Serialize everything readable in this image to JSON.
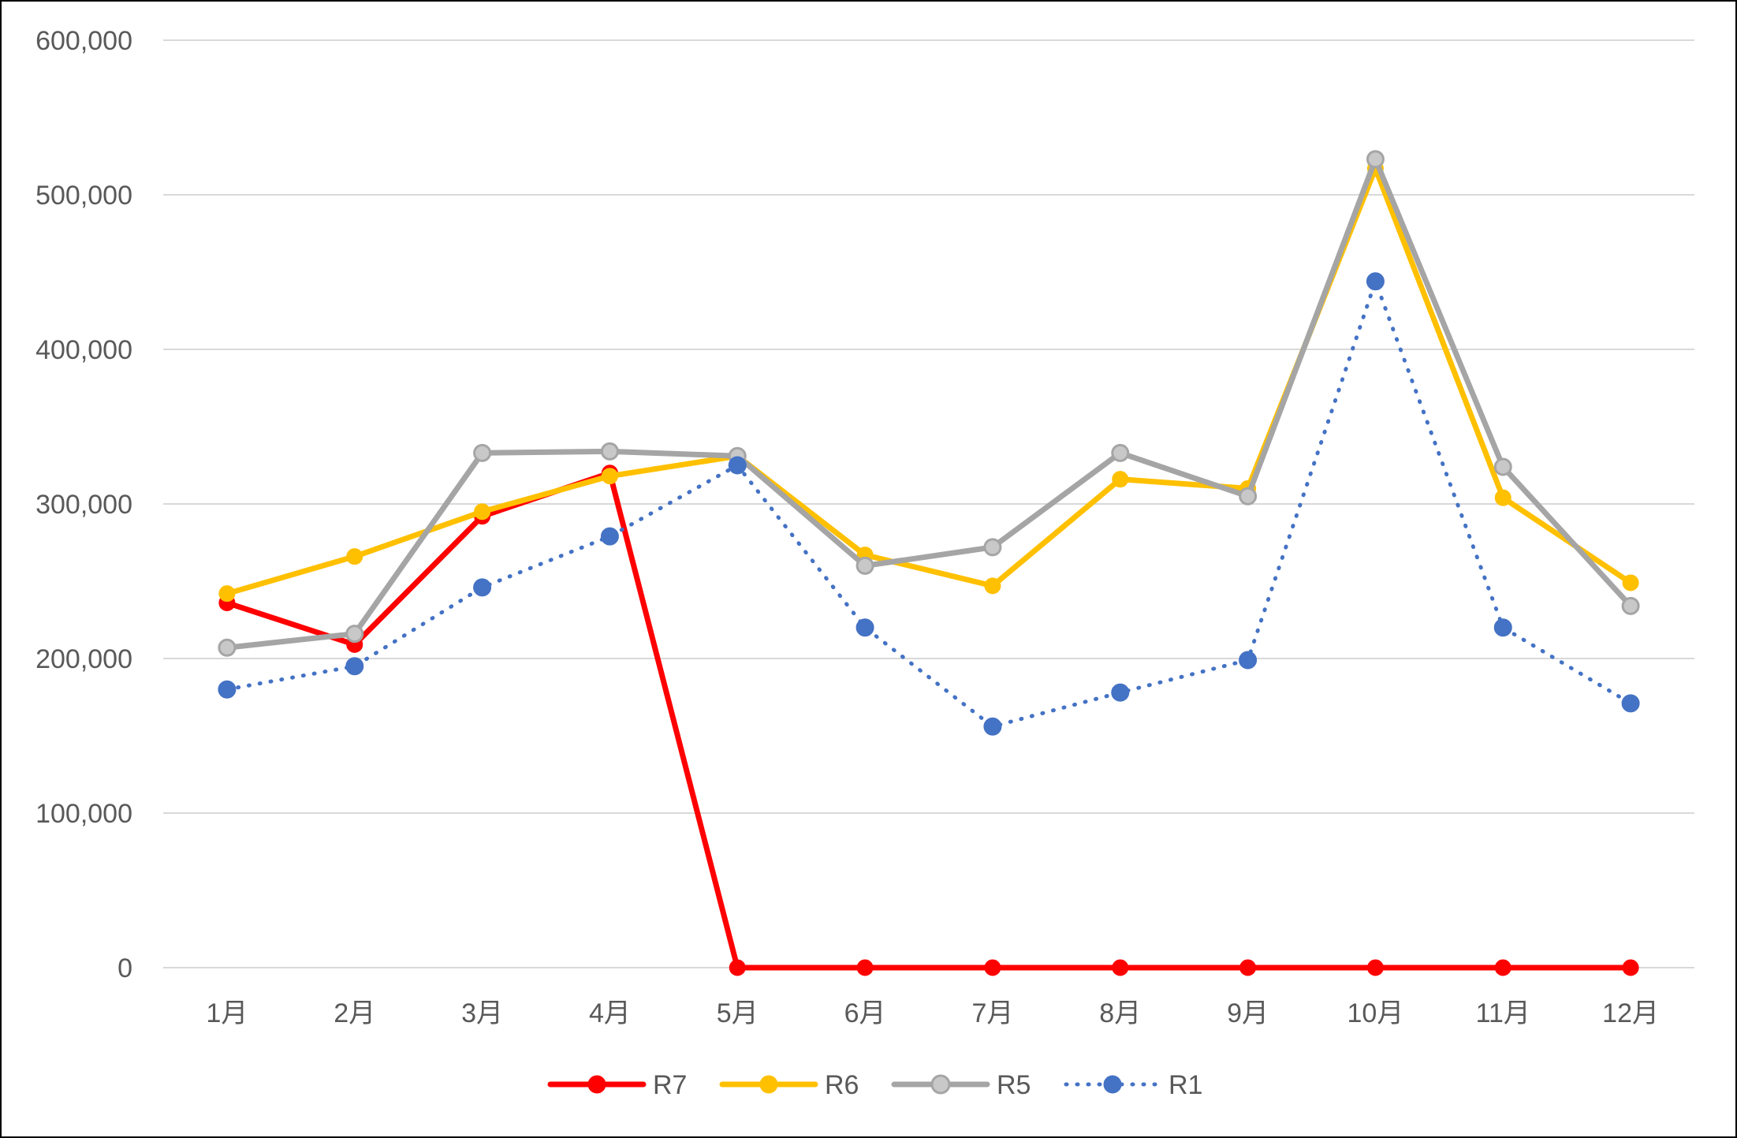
{
  "chart_data": {
    "type": "line",
    "title": "",
    "xlabel": "",
    "ylabel": "",
    "categories": [
      "1月",
      "2月",
      "3月",
      "4月",
      "5月",
      "6月",
      "7月",
      "8月",
      "9月",
      "10月",
      "11月",
      "12月"
    ],
    "ylim": [
      0,
      600000
    ],
    "yticks": [
      0,
      100000,
      200000,
      300000,
      400000,
      500000,
      600000
    ],
    "ytick_labels": [
      "0",
      "100,000",
      "200,000",
      "300,000",
      "400,000",
      "500,000",
      "600,000"
    ],
    "grid": true,
    "legend_position": "bottom",
    "series": [
      {
        "name": "R7",
        "color": "#ff0000",
        "line_style": "solid",
        "marker_fill": "#ff0000",
        "values": [
          236000,
          209000,
          292000,
          320000,
          0,
          0,
          0,
          0,
          0,
          0,
          0,
          0
        ]
      },
      {
        "name": "R6",
        "color": "#ffc000",
        "line_style": "solid",
        "marker_fill": "#ffc000",
        "values": [
          242000,
          266000,
          295000,
          318000,
          331000,
          267000,
          247000,
          316000,
          310000,
          517000,
          304000,
          249000
        ]
      },
      {
        "name": "R5",
        "color": "#a5a5a5",
        "line_style": "solid",
        "marker_fill": "#c8c8c8",
        "values": [
          207000,
          216000,
          333000,
          334000,
          331000,
          260000,
          272000,
          333000,
          305000,
          523000,
          324000,
          234000
        ]
      },
      {
        "name": "R1",
        "color": "#4472c4",
        "line_style": "dotted",
        "marker_fill": "#4472c4",
        "values": [
          180000,
          195000,
          246000,
          279000,
          325000,
          220000,
          156000,
          178000,
          199000,
          444000,
          220000,
          171000
        ]
      }
    ]
  }
}
